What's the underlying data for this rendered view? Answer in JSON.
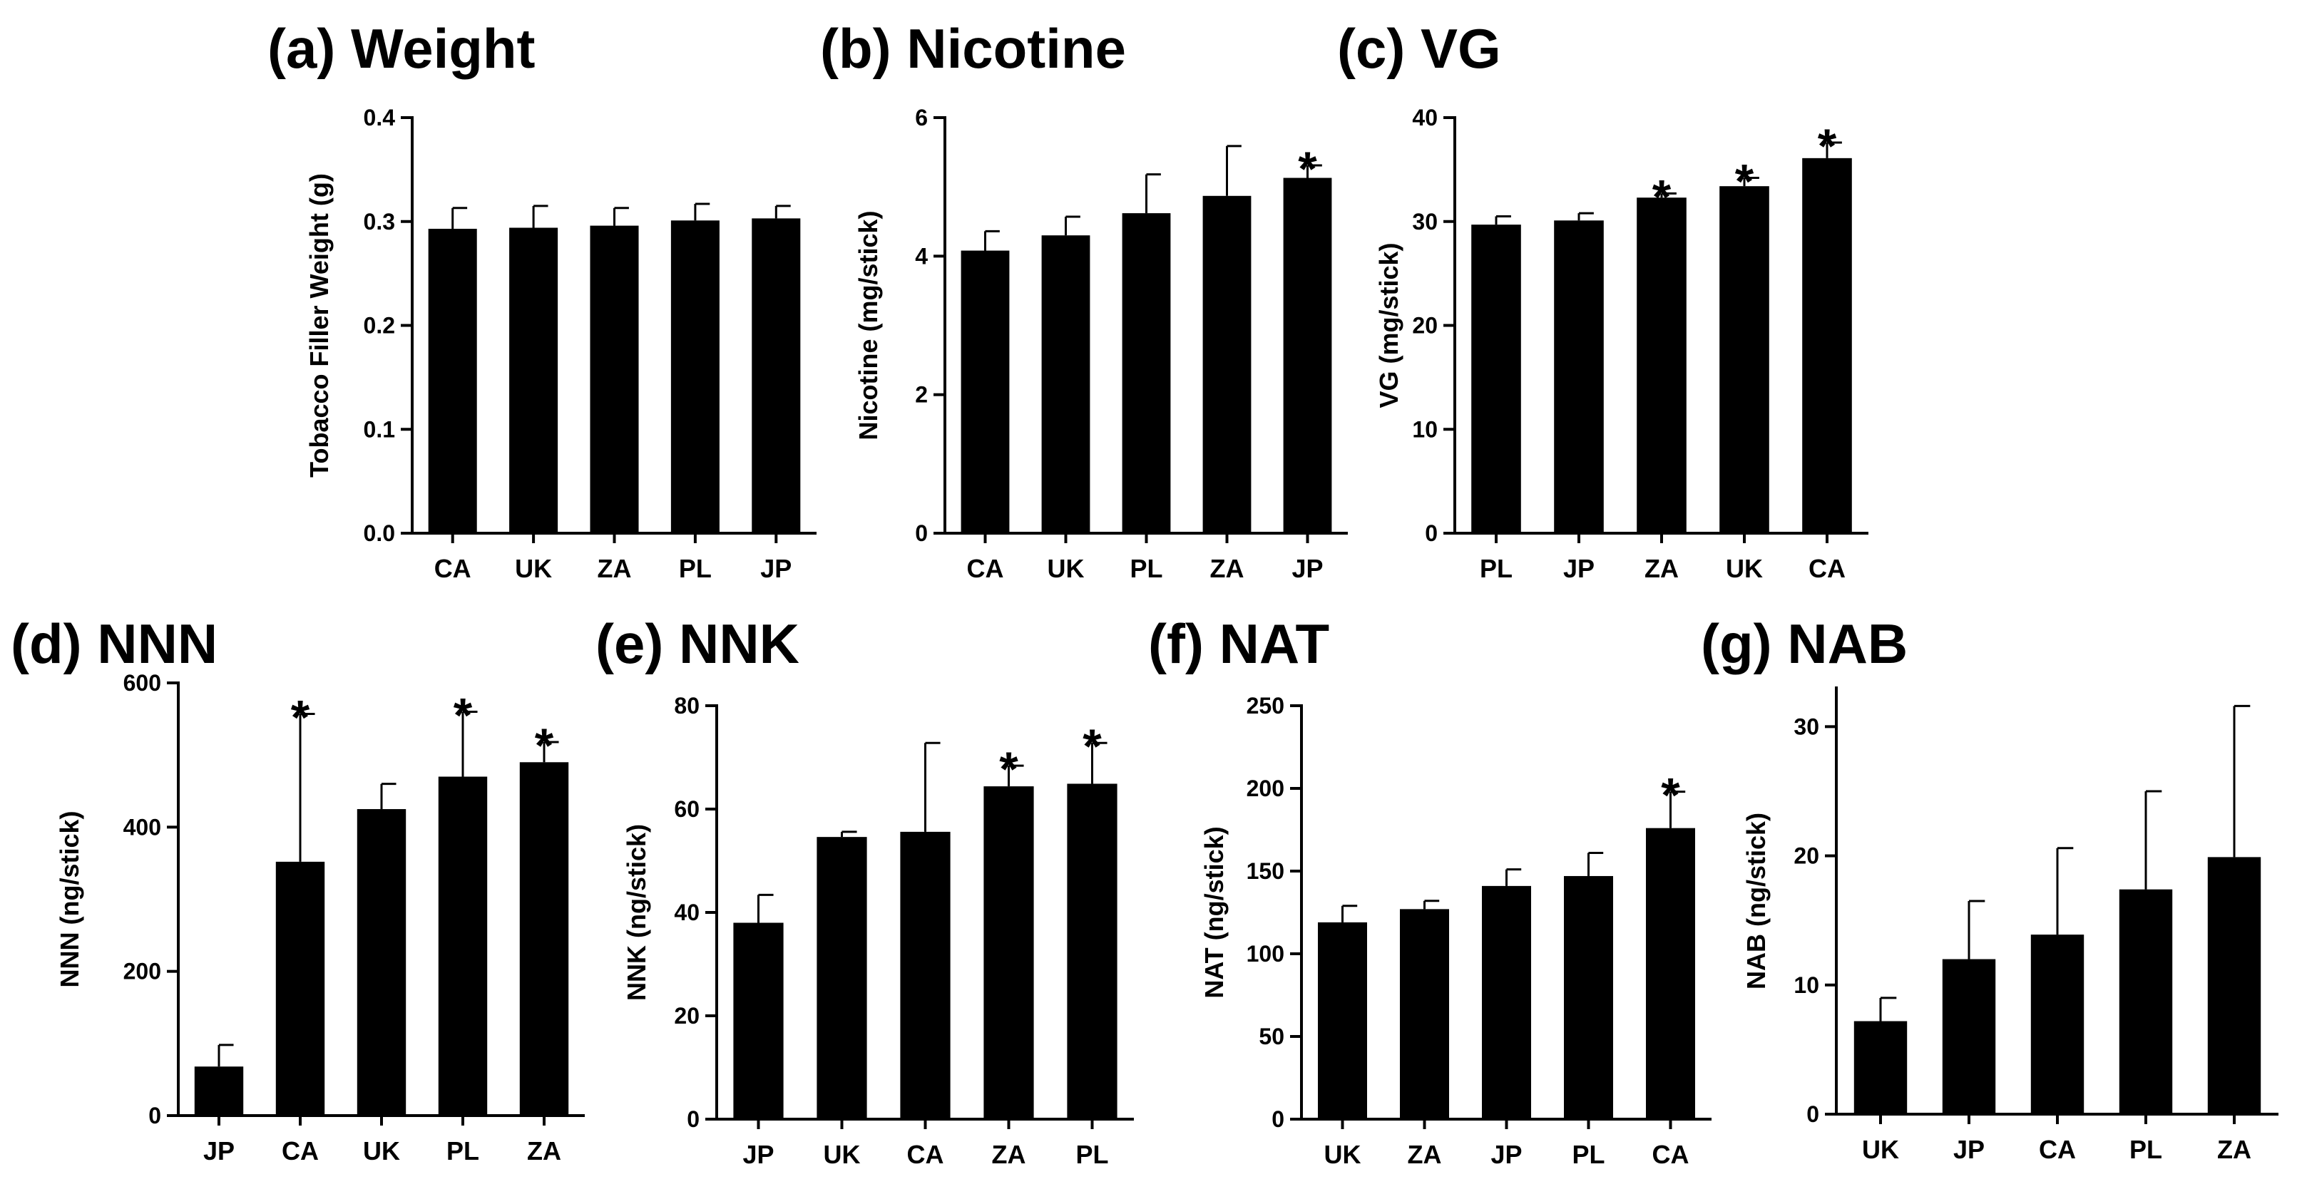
{
  "chart_data": [
    {
      "type": "bar",
      "panel": "(a)",
      "title": "(a) Weight",
      "xlabel": "",
      "ylabel": "Tobacco Filler Weight (g)",
      "ylim": [
        0,
        0.4
      ],
      "yticks": [
        "0.0",
        "0.1",
        "0.2",
        "0.3",
        "0.4"
      ],
      "categories": [
        "CA",
        "UK",
        "ZA",
        "PL",
        "JP"
      ],
      "values": [
        0.293,
        0.294,
        0.296,
        0.301,
        0.303
      ],
      "errors": [
        0.02,
        0.021,
        0.017,
        0.016,
        0.012
      ],
      "significant": [
        false,
        false,
        false,
        false,
        false
      ],
      "significance_marker": "*"
    },
    {
      "type": "bar",
      "panel": "(b)",
      "title": "(b) Nicotine",
      "xlabel": "",
      "ylabel": "Nicotine (mg/stick)",
      "ylim": [
        0,
        6
      ],
      "yticks": [
        "0",
        "2",
        "4",
        "6"
      ],
      "categories": [
        "CA",
        "UK",
        "PL",
        "ZA",
        "JP"
      ],
      "values": [
        4.08,
        4.3,
        4.62,
        4.87,
        5.13
      ],
      "errors": [
        0.28,
        0.27,
        0.56,
        0.72,
        0.18
      ],
      "significant": [
        false,
        false,
        false,
        false,
        true
      ],
      "significance_marker": "*"
    },
    {
      "type": "bar",
      "panel": "(c)",
      "title": "(c) VG",
      "xlabel": "",
      "ylabel": "VG (mg/stick)",
      "ylim": [
        0,
        40
      ],
      "yticks": [
        "0",
        "10",
        "20",
        "30",
        "40"
      ],
      "categories": [
        "PL",
        "JP",
        "ZA",
        "UK",
        "CA"
      ],
      "values": [
        29.7,
        30.1,
        32.3,
        33.4,
        36.1
      ],
      "errors": [
        0.8,
        0.7,
        0.4,
        0.8,
        1.5
      ],
      "significant": [
        false,
        false,
        true,
        true,
        true
      ],
      "significance_marker": "*"
    },
    {
      "type": "bar",
      "panel": "(d)",
      "title": "(d) NNN",
      "xlabel": "",
      "ylabel": "NNN (ng/stick)",
      "ylim": [
        0,
        600
      ],
      "yticks": [
        "0",
        "200",
        "400",
        "600"
      ],
      "categories": [
        "JP",
        "CA",
        "UK",
        "PL",
        "ZA"
      ],
      "values": [
        68,
        352,
        425,
        470,
        490
      ],
      "errors": [
        30,
        205,
        35,
        90,
        28
      ],
      "significant": [
        false,
        true,
        false,
        true,
        true
      ],
      "significance_marker": "*"
    },
    {
      "type": "bar",
      "panel": "(e)",
      "title": "(e) NNK",
      "xlabel": "",
      "ylabel": "NNK (ng/stick)",
      "ylim": [
        0,
        80
      ],
      "yticks": [
        "0",
        "20",
        "40",
        "60",
        "80"
      ],
      "categories": [
        "JP",
        "UK",
        "CA",
        "ZA",
        "PL"
      ],
      "values": [
        38,
        54.6,
        55.6,
        64.4,
        64.9
      ],
      "errors": [
        5.4,
        1.0,
        17.2,
        4.0,
        7.9
      ],
      "significant": [
        false,
        false,
        false,
        true,
        true
      ],
      "significance_marker": "*"
    },
    {
      "type": "bar",
      "panel": "(f)",
      "title": "(f) NAT",
      "xlabel": "",
      "ylabel": "NAT (ng/stick)",
      "ylim": [
        0,
        250
      ],
      "yticks": [
        "0",
        "50",
        "100",
        "150",
        "200",
        "250"
      ],
      "categories": [
        "UK",
        "ZA",
        "JP",
        "PL",
        "CA"
      ],
      "values": [
        119,
        127,
        141,
        147,
        176
      ],
      "errors": [
        10,
        5,
        10,
        14,
        22
      ],
      "significant": [
        false,
        false,
        false,
        false,
        true
      ],
      "significance_marker": "*"
    },
    {
      "type": "bar",
      "panel": "(g)",
      "title": "(g) NAB",
      "xlabel": "",
      "ylabel": "NAB (ng/stick)",
      "ylim": [
        0,
        33
      ],
      "yticks": [
        "0",
        "10",
        "20",
        "30"
      ],
      "categories": [
        "UK",
        "JP",
        "CA",
        "PL",
        "ZA"
      ],
      "values": [
        7.2,
        12.0,
        13.9,
        17.4,
        19.9
      ],
      "errors": [
        1.8,
        4.5,
        6.7,
        7.6,
        11.7
      ],
      "significant": [
        false,
        false,
        false,
        false,
        false
      ],
      "significance_marker": "*"
    }
  ]
}
